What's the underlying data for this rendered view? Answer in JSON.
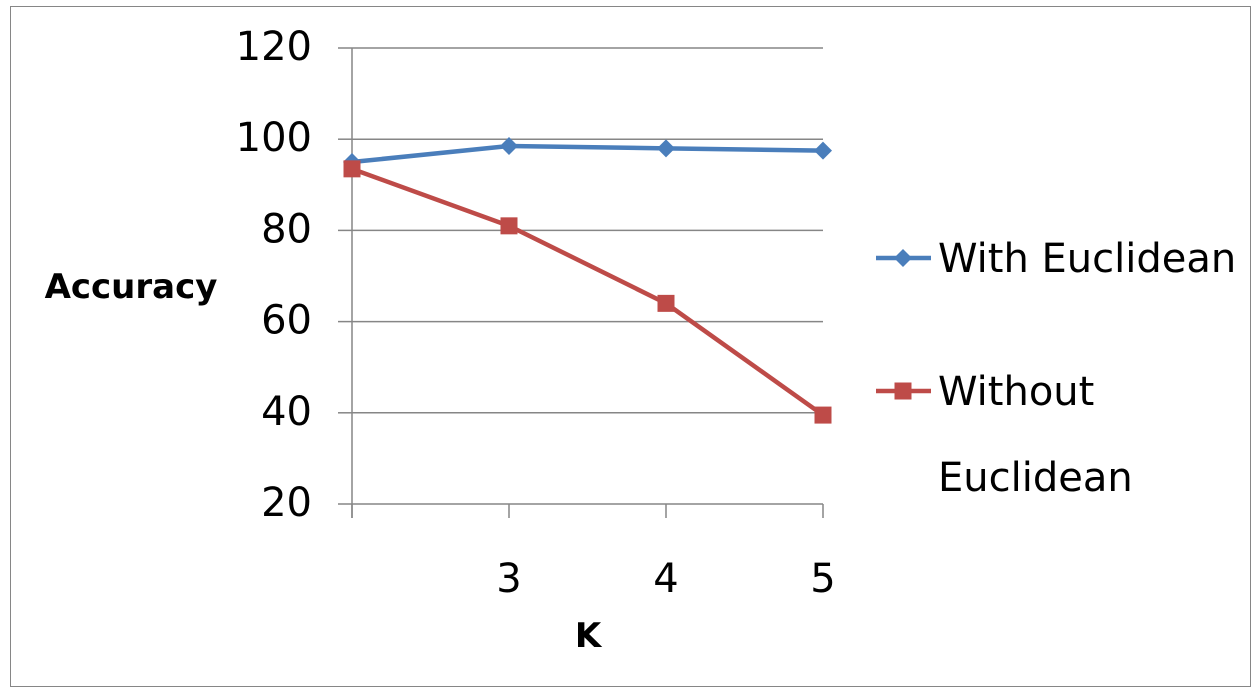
{
  "chart_data": {
    "type": "line",
    "title": "",
    "xlabel": "K",
    "ylabel": "Accuracy",
    "x": [
      2,
      3,
      4,
      5
    ],
    "x_tick_labels": [
      "",
      "3",
      "4",
      "5"
    ],
    "y_tick_labels": [
      "20",
      "40",
      "60",
      "80",
      "100",
      "120"
    ],
    "series": [
      {
        "name": "With Euclidean",
        "values": [
          95,
          98.5,
          98,
          97.5
        ],
        "color": "#4A7EBB",
        "marker": "diamond"
      },
      {
        "name": "Without Euclidean",
        "values": [
          93.5,
          81,
          64,
          39.5
        ],
        "color": "#BE4B48",
        "marker": "square"
      }
    ],
    "legend_lines": [
      [
        "With Euclidean"
      ],
      [
        "Without",
        "Euclidean"
      ]
    ],
    "legend": "right",
    "grid": true
  }
}
